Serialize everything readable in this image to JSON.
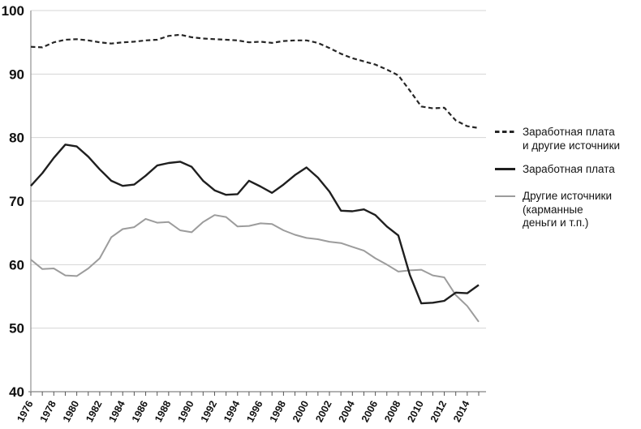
{
  "chart_data": {
    "type": "line",
    "x": [
      1976,
      1977,
      1978,
      1979,
      1980,
      1981,
      1982,
      1983,
      1984,
      1985,
      1986,
      1987,
      1988,
      1989,
      1990,
      1991,
      1992,
      1993,
      1994,
      1995,
      1996,
      1997,
      1998,
      1999,
      2000,
      2001,
      2002,
      2003,
      2004,
      2005,
      2006,
      2007,
      2008,
      2009,
      2010,
      2011,
      2012,
      2013,
      2014,
      2015
    ],
    "series": [
      {
        "name": "Заработная плата и другие источники",
        "style": "dashed",
        "color": "#262626",
        "width": 2.2,
        "values": [
          94.3,
          94.2,
          95.0,
          95.4,
          95.5,
          95.3,
          95.0,
          94.8,
          95.0,
          95.1,
          95.3,
          95.4,
          96.0,
          96.2,
          95.8,
          95.6,
          95.5,
          95.4,
          95.3,
          95.0,
          95.1,
          94.9,
          95.2,
          95.3,
          95.3,
          94.9,
          94.1,
          93.2,
          92.5,
          92.0,
          91.5,
          90.7,
          89.8,
          87.4,
          84.9,
          84.6,
          84.7,
          82.7,
          81.8,
          81.5
        ]
      },
      {
        "name": "Заработная плата",
        "style": "solid",
        "color": "#1f1f1f",
        "width": 2.4,
        "values": [
          72.4,
          74.4,
          76.8,
          78.9,
          78.6,
          77.0,
          75.0,
          73.2,
          72.4,
          72.6,
          74.0,
          75.6,
          76.0,
          76.2,
          75.4,
          73.2,
          71.7,
          71.0,
          71.1,
          73.2,
          72.3,
          71.3,
          72.6,
          74.1,
          75.3,
          73.7,
          71.5,
          68.5,
          68.4,
          68.7,
          67.8,
          66.0,
          64.6,
          58.4,
          53.9,
          54.0,
          54.3,
          55.6,
          55.5,
          56.8
        ]
      },
      {
        "name": "Другие источники (карманные деньги и т.п.)",
        "style": "solid",
        "color": "#9c9c9c",
        "width": 2.0,
        "values": [
          60.8,
          59.3,
          59.4,
          58.3,
          58.2,
          59.4,
          61.0,
          64.3,
          65.6,
          65.9,
          67.2,
          66.6,
          66.7,
          65.4,
          65.1,
          66.7,
          67.8,
          67.5,
          66.0,
          66.1,
          66.5,
          66.4,
          65.4,
          64.7,
          64.2,
          64.0,
          63.6,
          63.4,
          62.8,
          62.2,
          61.0,
          60.0,
          58.9,
          59.1,
          59.2,
          58.3,
          58.0,
          55.2,
          53.5,
          51.0
        ]
      }
    ],
    "title": "",
    "xlabel": "",
    "ylabel": "",
    "ylim": [
      40,
      100
    ],
    "y_ticks": [
      40,
      50,
      60,
      70,
      80,
      90,
      100
    ],
    "y_tick_labels": [
      "40",
      "50",
      "60",
      "70",
      "80",
      "90",
      "100"
    ],
    "x_tick_labels": [
      "1976",
      "1978",
      "1980",
      "1982",
      "1984",
      "1986",
      "1988",
      "1990",
      "1992",
      "1994",
      "1996",
      "1998",
      "2000",
      "2002",
      "2004",
      "2006",
      "2008",
      "2010",
      "2012",
      "2014"
    ],
    "grid": true,
    "legend_position": "right"
  },
  "legend": {
    "items": [
      {
        "sample": "dashed-black",
        "lines": [
          "Заработная плата",
          "и другие источники"
        ]
      },
      {
        "sample": "solid-black",
        "lines": [
          "Заработная плата"
        ]
      },
      {
        "sample": "solid-gray",
        "lines": [
          "Другие источники",
          "(карманные",
          "деньги и т.п.)"
        ]
      }
    ]
  },
  "colors": {
    "dashed_line": "#262626",
    "solid_line": "#1f1f1f",
    "gray_line": "#9c9c9c",
    "gridline": "#d4d4d4",
    "axis": "#999999",
    "tick": "#555555",
    "label_text": "#101010"
  }
}
